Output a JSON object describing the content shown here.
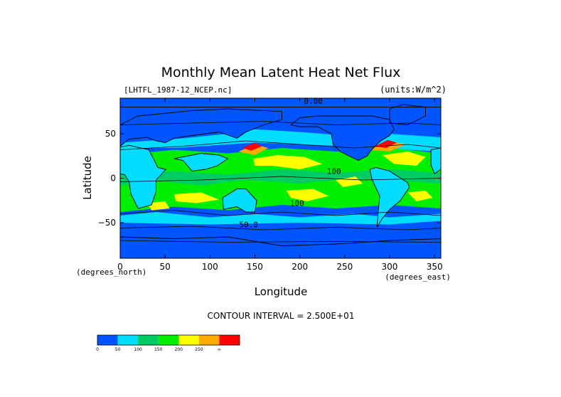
{
  "chart_data": {
    "type": "heatmap",
    "title": "Monthly Mean Latent Heat Net Flux",
    "file_label": "[LHTFL_1987-12_NCEP.nc]",
    "units_label": "(units:W/m^2)",
    "xlabel": "Longitude",
    "ylabel": "Latitude",
    "x_unit_label": "(degrees_east)",
    "y_unit_label": "(degrees_north)",
    "xlim": [
      0,
      357
    ],
    "ylim": [
      -90,
      90
    ],
    "x_ticks": [
      0,
      50,
      100,
      150,
      200,
      250,
      300,
      350
    ],
    "y_ticks": [
      -50,
      0,
      50
    ],
    "contour_interval_text": "CONTOUR INTERVAL = 2.500E+01",
    "contour_labels": [
      {
        "text": "0.00",
        "lon": 215,
        "lat": 87
      },
      {
        "text": "100",
        "lon": 197,
        "lat": -28
      },
      {
        "text": "50.0",
        "lon": 143,
        "lat": -52
      },
      {
        "text": "100",
        "lon": 238,
        "lat": 8
      }
    ],
    "colorbar": {
      "colors": [
        "#0055ff",
        "#00ddff",
        "#00cc66",
        "#00ee00",
        "#ffff00",
        "#ffaa00",
        "#ff0000"
      ],
      "tick_labels": [
        "0",
        "50",
        "100",
        "150",
        "200",
        "250",
        "∞"
      ]
    }
  }
}
